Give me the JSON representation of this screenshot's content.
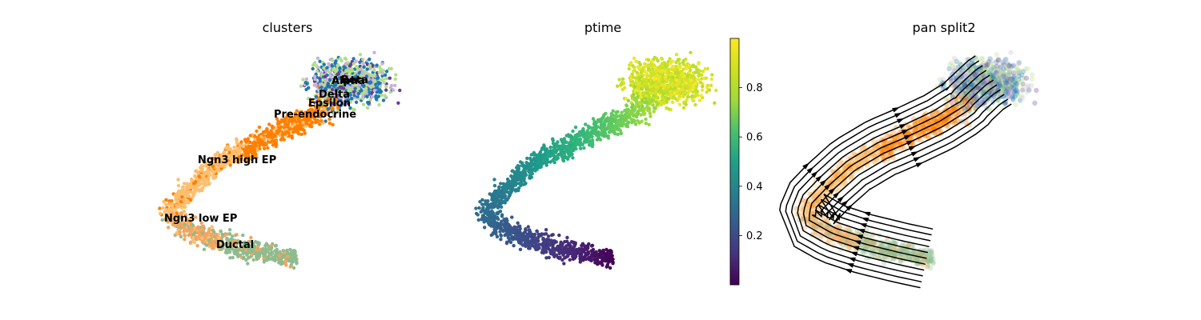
{
  "chart_data": [
    {
      "type": "scatter",
      "title": "clusters",
      "xlabel": "",
      "ylabel": "",
      "legend": "on data",
      "categories": [
        "Ductal",
        "Ngn3 low EP",
        "Ngn3 high EP",
        "Pre-endocrine",
        "Beta",
        "Alpha",
        "Delta",
        "Epsilon"
      ],
      "colors": {
        "Ductal": "#8fbc8f",
        "Ngn3 low EP": "#f4a460",
        "Ngn3 high EP": "#fdbf6f",
        "Pre-endocrine": "#ff7f00",
        "Beta": "#b2df8a",
        "Alpha": "#1f78b4",
        "Delta": "#6a3d9a",
        "Epsilon": "#cab2d6"
      },
      "labels": [
        {
          "text": "Beta",
          "x": 0.9,
          "y": 0.9
        },
        {
          "text": "Alpha",
          "x": 0.88,
          "y": 0.9
        },
        {
          "text": "Delta",
          "x": 0.85,
          "y": 0.84
        },
        {
          "text": "Epsilon",
          "x": 0.86,
          "y": 0.8
        },
        {
          "text": "Pre-endocrine",
          "x": 0.82,
          "y": 0.75
        },
        {
          "text": "Ngn3 high EP",
          "x": 0.43,
          "y": 0.57
        },
        {
          "text": "Ngn3 low EP",
          "x": 0.23,
          "y": 0.33
        },
        {
          "text": "Ductal",
          "x": 0.45,
          "y": 0.2
        }
      ]
    },
    {
      "type": "scatter",
      "title": "ptime",
      "xlabel": "",
      "ylabel": "",
      "colorbar": {
        "colormap": "viridis",
        "range": [
          0,
          1
        ],
        "ticks": [
          0.2,
          0.4,
          0.6,
          0.8
        ],
        "tick_labels": [
          "0.2",
          "0.4",
          "0.6",
          "0.8"
        ]
      }
    },
    {
      "type": "scatter",
      "title": "pan split2",
      "xlabel": "",
      "ylabel": "",
      "overlay": "streamlines",
      "stream_color": "#000000",
      "point_alpha": 0.3
    }
  ]
}
